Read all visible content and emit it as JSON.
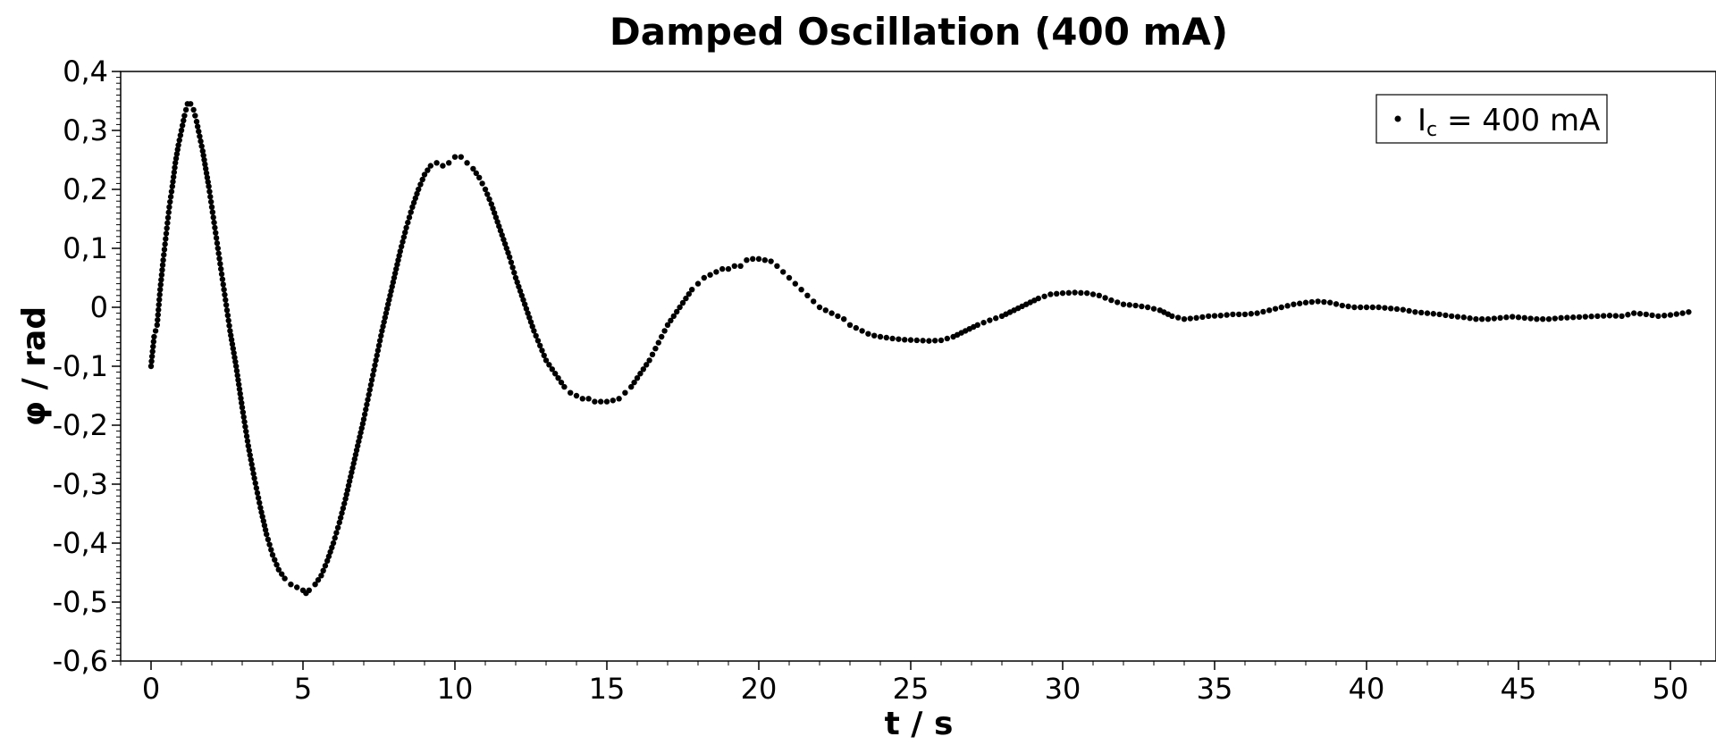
{
  "chart_data": {
    "type": "scatter",
    "title": "Damped Oscillation (400 mA)",
    "xlabel": "t / s",
    "ylabel": "φ / rad",
    "xlim": [
      -1,
      51.5
    ],
    "ylim": [
      -0.6,
      0.4
    ],
    "xticks": [
      "0",
      "5",
      "10",
      "15",
      "20",
      "25",
      "30",
      "35",
      "40",
      "45",
      "50"
    ],
    "yticks": [
      "0,4",
      "0,3",
      "0,2",
      "0,1",
      "0",
      "-0,1",
      "-0,2",
      "-0,3",
      "-0,4",
      "-0,5",
      "-0,6"
    ],
    "grid": false,
    "legend_position": "top-right",
    "marker_color": "#000000",
    "series": [
      {
        "legend_label": "I",
        "legend_subscript": "c",
        "legend_value": " = 400 mA",
        "points": [
          [
            0.0,
            -0.1
          ],
          [
            0.1,
            -0.05
          ],
          [
            0.2,
            -0.03
          ],
          [
            0.3,
            0.03
          ],
          [
            0.4,
            0.08
          ],
          [
            0.5,
            0.125
          ],
          [
            0.6,
            0.17
          ],
          [
            0.7,
            0.205
          ],
          [
            0.8,
            0.245
          ],
          [
            0.9,
            0.275
          ],
          [
            1.0,
            0.3
          ],
          [
            1.1,
            0.325
          ],
          [
            1.2,
            0.345
          ],
          [
            1.3,
            0.345
          ],
          [
            1.4,
            0.335
          ],
          [
            1.5,
            0.315
          ],
          [
            1.6,
            0.29
          ],
          [
            1.7,
            0.265
          ],
          [
            1.8,
            0.235
          ],
          [
            1.9,
            0.205
          ],
          [
            2.0,
            0.17
          ],
          [
            2.1,
            0.135
          ],
          [
            2.2,
            0.1
          ],
          [
            2.3,
            0.065
          ],
          [
            2.4,
            0.03
          ],
          [
            2.5,
            -0.005
          ],
          [
            2.6,
            -0.04
          ],
          [
            2.8,
            -0.1
          ],
          [
            3.0,
            -0.17
          ],
          [
            3.2,
            -0.235
          ],
          [
            3.4,
            -0.29
          ],
          [
            3.6,
            -0.34
          ],
          [
            3.8,
            -0.385
          ],
          [
            4.0,
            -0.42
          ],
          [
            4.2,
            -0.445
          ],
          [
            4.4,
            -0.46
          ],
          [
            4.6,
            -0.47
          ],
          [
            4.8,
            -0.475
          ],
          [
            5.0,
            -0.48
          ],
          [
            5.1,
            -0.485
          ],
          [
            5.2,
            -0.48
          ],
          [
            5.4,
            -0.47
          ],
          [
            5.6,
            -0.455
          ],
          [
            5.8,
            -0.43
          ],
          [
            6.0,
            -0.4
          ],
          [
            6.2,
            -0.365
          ],
          [
            6.4,
            -0.325
          ],
          [
            6.6,
            -0.28
          ],
          [
            6.8,
            -0.235
          ],
          [
            7.0,
            -0.19
          ],
          [
            7.2,
            -0.14
          ],
          [
            7.4,
            -0.09
          ],
          [
            7.6,
            -0.04
          ],
          [
            7.8,
            0.005
          ],
          [
            8.0,
            0.05
          ],
          [
            8.2,
            0.095
          ],
          [
            8.4,
            0.135
          ],
          [
            8.6,
            0.17
          ],
          [
            8.8,
            0.2
          ],
          [
            9.0,
            0.225
          ],
          [
            9.2,
            0.24
          ],
          [
            9.4,
            0.245
          ],
          [
            9.6,
            0.24
          ],
          [
            9.8,
            0.245
          ],
          [
            10.0,
            0.255
          ],
          [
            10.2,
            0.255
          ],
          [
            10.4,
            0.245
          ],
          [
            10.6,
            0.235
          ],
          [
            10.8,
            0.22
          ],
          [
            11.0,
            0.2
          ],
          [
            11.2,
            0.175
          ],
          [
            11.4,
            0.145
          ],
          [
            11.6,
            0.115
          ],
          [
            11.8,
            0.085
          ],
          [
            12.0,
            0.05
          ],
          [
            12.2,
            0.02
          ],
          [
            12.4,
            -0.01
          ],
          [
            12.6,
            -0.04
          ],
          [
            12.8,
            -0.065
          ],
          [
            13.0,
            -0.09
          ],
          [
            13.2,
            -0.105
          ],
          [
            13.4,
            -0.12
          ],
          [
            13.6,
            -0.135
          ],
          [
            13.8,
            -0.145
          ],
          [
            14.0,
            -0.15
          ],
          [
            14.2,
            -0.155
          ],
          [
            14.4,
            -0.155
          ],
          [
            14.6,
            -0.16
          ],
          [
            14.8,
            -0.16
          ],
          [
            15.0,
            -0.16
          ],
          [
            15.2,
            -0.158
          ],
          [
            15.4,
            -0.155
          ],
          [
            15.6,
            -0.145
          ],
          [
            15.8,
            -0.135
          ],
          [
            16.0,
            -0.12
          ],
          [
            16.2,
            -0.105
          ],
          [
            16.4,
            -0.09
          ],
          [
            16.6,
            -0.07
          ],
          [
            16.8,
            -0.05
          ],
          [
            17.0,
            -0.03
          ],
          [
            17.2,
            -0.015
          ],
          [
            17.4,
            0.0
          ],
          [
            17.6,
            0.015
          ],
          [
            17.8,
            0.03
          ],
          [
            18.0,
            0.04
          ],
          [
            18.2,
            0.05
          ],
          [
            18.4,
            0.055
          ],
          [
            18.6,
            0.06
          ],
          [
            18.8,
            0.065
          ],
          [
            19.0,
            0.065
          ],
          [
            19.2,
            0.07
          ],
          [
            19.4,
            0.07
          ],
          [
            19.6,
            0.08
          ],
          [
            19.8,
            0.082
          ],
          [
            20.0,
            0.082
          ],
          [
            20.2,
            0.08
          ],
          [
            20.4,
            0.078
          ],
          [
            20.6,
            0.07
          ],
          [
            20.8,
            0.06
          ],
          [
            21.0,
            0.05
          ],
          [
            21.2,
            0.04
          ],
          [
            21.4,
            0.03
          ],
          [
            21.6,
            0.02
          ],
          [
            21.8,
            0.01
          ],
          [
            22.0,
            0.0
          ],
          [
            22.2,
            -0.005
          ],
          [
            22.4,
            -0.01
          ],
          [
            22.6,
            -0.015
          ],
          [
            22.8,
            -0.02
          ],
          [
            23.0,
            -0.03
          ],
          [
            23.2,
            -0.035
          ],
          [
            23.4,
            -0.04
          ],
          [
            23.6,
            -0.045
          ],
          [
            23.8,
            -0.048
          ],
          [
            24.0,
            -0.05
          ],
          [
            24.4,
            -0.053
          ],
          [
            24.8,
            -0.055
          ],
          [
            25.2,
            -0.056
          ],
          [
            25.6,
            -0.057
          ],
          [
            26.0,
            -0.056
          ],
          [
            26.4,
            -0.05
          ],
          [
            26.8,
            -0.04
          ],
          [
            27.2,
            -0.03
          ],
          [
            27.6,
            -0.022
          ],
          [
            28.0,
            -0.015
          ],
          [
            28.4,
            -0.005
          ],
          [
            28.8,
            0.005
          ],
          [
            29.2,
            0.015
          ],
          [
            29.6,
            0.022
          ],
          [
            30.0,
            0.024
          ],
          [
            30.4,
            0.025
          ],
          [
            30.8,
            0.024
          ],
          [
            31.2,
            0.02
          ],
          [
            31.6,
            0.012
          ],
          [
            32.0,
            0.005
          ],
          [
            32.4,
            0.003
          ],
          [
            32.8,
            0.0
          ],
          [
            33.2,
            -0.005
          ],
          [
            33.6,
            -0.015
          ],
          [
            34.0,
            -0.02
          ],
          [
            34.4,
            -0.018
          ],
          [
            34.8,
            -0.015
          ],
          [
            35.2,
            -0.014
          ],
          [
            35.6,
            -0.012
          ],
          [
            36.0,
            -0.012
          ],
          [
            36.4,
            -0.01
          ],
          [
            36.8,
            -0.005
          ],
          [
            37.2,
            0.0
          ],
          [
            37.6,
            0.005
          ],
          [
            38.0,
            0.008
          ],
          [
            38.4,
            0.01
          ],
          [
            38.8,
            0.008
          ],
          [
            39.2,
            0.003
          ],
          [
            39.6,
            0.0
          ],
          [
            40.0,
            0.0
          ],
          [
            40.4,
            0.0
          ],
          [
            40.8,
            -0.002
          ],
          [
            41.2,
            -0.004
          ],
          [
            41.6,
            -0.008
          ],
          [
            42.0,
            -0.01
          ],
          [
            42.4,
            -0.012
          ],
          [
            42.8,
            -0.015
          ],
          [
            43.2,
            -0.017
          ],
          [
            43.6,
            -0.02
          ],
          [
            44.0,
            -0.02
          ],
          [
            44.4,
            -0.018
          ],
          [
            44.8,
            -0.016
          ],
          [
            45.2,
            -0.018
          ],
          [
            45.6,
            -0.02
          ],
          [
            46.0,
            -0.02
          ],
          [
            46.4,
            -0.018
          ],
          [
            46.8,
            -0.017
          ],
          [
            47.2,
            -0.016
          ],
          [
            47.6,
            -0.015
          ],
          [
            48.0,
            -0.014
          ],
          [
            48.4,
            -0.015
          ],
          [
            48.8,
            -0.01
          ],
          [
            49.2,
            -0.012
          ],
          [
            49.6,
            -0.015
          ],
          [
            50.0,
            -0.013
          ],
          [
            50.4,
            -0.01
          ],
          [
            50.6,
            -0.008
          ]
        ]
      }
    ]
  }
}
